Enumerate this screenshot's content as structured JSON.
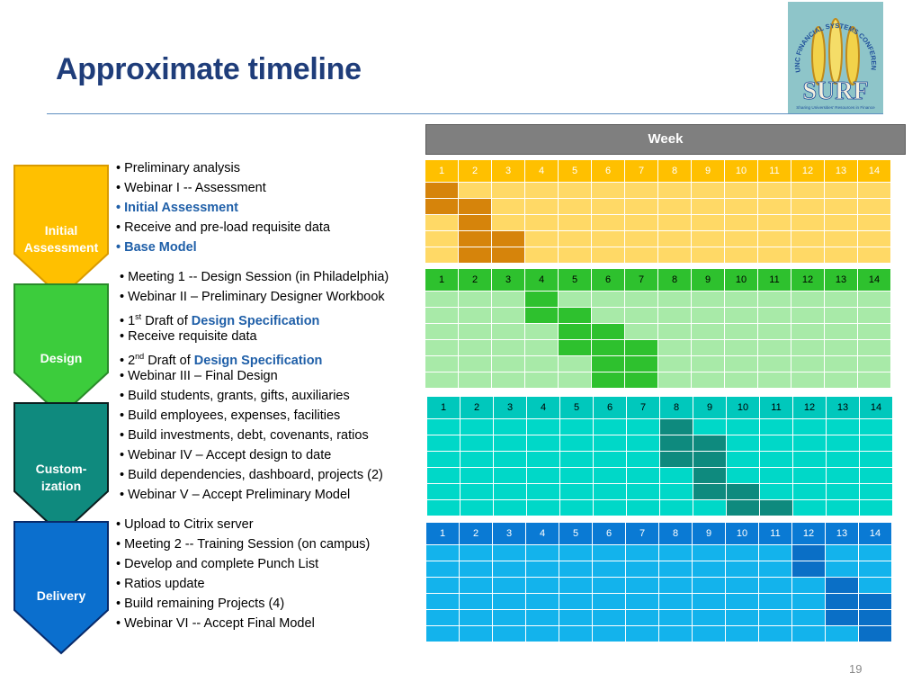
{
  "slide": {
    "title": "Approximate timeline",
    "page_number": "19"
  },
  "logo": {
    "arc_text": "UNC FINANCIAL SYSTEMS CONFERENCE",
    "name": "SURF",
    "tagline": "Sharing Universities' Resources in Finance"
  },
  "timeline": {
    "week_label": "Week",
    "week_numbers": [
      "1",
      "2",
      "3",
      "4",
      "5",
      "6",
      "7",
      "8",
      "9",
      "10",
      "11",
      "12",
      "13",
      "14"
    ]
  },
  "colors": {
    "initial": {
      "arrow": "#ffc000",
      "arrow_edge": "#d99a00",
      "header": "#ffc000",
      "light": "#ffd966",
      "dark": "#d6840b",
      "text": "#ffffff"
    },
    "design": {
      "arrow": "#3ccc3c",
      "arrow_edge": "#2a8a2a",
      "header": "#2ec12e",
      "light": "#a8eaa8",
      "dark": "#2ec12e",
      "text": "#000000"
    },
    "custom": {
      "arrow": "#0f8a7e",
      "arrow_edge": "#0b1f1f",
      "header": "#00c8bc",
      "light": "#00d8c8",
      "dark": "#0e8a7e",
      "text": "#000000"
    },
    "delivery": {
      "arrow": "#0b6fce",
      "arrow_edge": "#082a6a",
      "header": "#0a7ad4",
      "light": "#13b3ec",
      "dark": "#0a6fc6",
      "text": "#ffffff"
    }
  },
  "phases": [
    {
      "id": "initial",
      "label": "Initial\nAssessment",
      "bullets": [
        {
          "text": "• Preliminary analysis",
          "highlight": false
        },
        {
          "text": "• Webinar I -- Assessment",
          "highlight": false
        },
        {
          "text": "• Initial Assessment",
          "highlight": true
        },
        {
          "text": "• Receive and pre-load requisite data",
          "highlight": false
        },
        {
          "text": "• Base Model",
          "highlight": true
        }
      ],
      "bar_weeks": [
        [
          1
        ],
        [
          1,
          2
        ],
        [
          2
        ],
        [
          2,
          3
        ],
        [
          2,
          3
        ]
      ]
    },
    {
      "id": "design",
      "label": "Design",
      "bullets": [
        {
          "text": "• Meeting 1 -- Design Session (in Philadelphia)",
          "highlight": false
        },
        {
          "text": "• Webinar II – Preliminary Designer Workbook",
          "highlight": false
        },
        {
          "pre": "• 1",
          "sup": "st",
          "mid": " Draft of ",
          "link": "Design Specification"
        },
        {
          "text": "• Receive requisite data",
          "highlight": false
        },
        {
          "pre": "• 2",
          "sup": "nd",
          "mid": " Draft of ",
          "link": "Design Specification"
        },
        {
          "text": "• Webinar III – Final Design",
          "highlight": false
        }
      ],
      "bar_weeks": [
        [
          4
        ],
        [
          4,
          5
        ],
        [
          5,
          6
        ],
        [
          5,
          6,
          7
        ],
        [
          6,
          7
        ],
        [
          6,
          7
        ]
      ]
    },
    {
      "id": "custom",
      "label": "Custom-\nization",
      "bullets": [
        {
          "text": "• Build students, grants, gifts, auxiliaries",
          "highlight": false
        },
        {
          "text": "• Build employees, expenses, facilities",
          "highlight": false
        },
        {
          "text": "• Build investments, debt, covenants, ratios",
          "highlight": false
        },
        {
          "text": "• Webinar IV – Accept design to date",
          "highlight": false
        },
        {
          "text": "• Build dependencies, dashboard, projects (2)",
          "highlight": false
        },
        {
          "text": "• Webinar V – Accept Preliminary Model",
          "highlight": false
        }
      ],
      "bar_weeks": [
        [
          8
        ],
        [
          8,
          9
        ],
        [
          8,
          9
        ],
        [
          9
        ],
        [
          9,
          10
        ],
        [
          10,
          11
        ]
      ]
    },
    {
      "id": "delivery",
      "label": "Delivery",
      "bullets": [
        {
          "text": "• Upload to Citrix server",
          "highlight": false
        },
        {
          "text": "• Meeting 2 -- Training Session (on campus)",
          "highlight": false
        },
        {
          "text": "• Develop and complete Punch List",
          "highlight": false
        },
        {
          "text": "• Ratios update",
          "highlight": false
        },
        {
          "text": "• Build remaining Projects (4)",
          "highlight": false
        },
        {
          "text": "• Webinar VI -- Accept Final Model",
          "highlight": false
        }
      ],
      "bar_weeks": [
        [
          12
        ],
        [
          12
        ],
        [
          13
        ],
        [
          13,
          14
        ],
        [
          13,
          14
        ],
        [
          14
        ]
      ]
    }
  ]
}
